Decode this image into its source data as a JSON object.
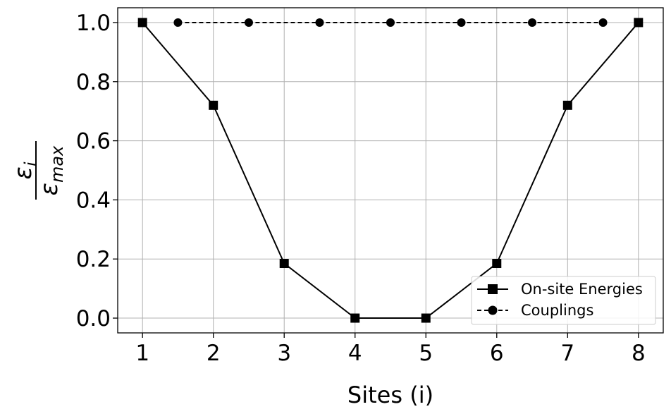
{
  "chart_data": {
    "type": "line",
    "title": "",
    "xlabel": "Sites (i)",
    "ylabel": {
      "numerator_symbol": "ε",
      "numerator_subscript": "i",
      "denominator_symbol": "ε",
      "denominator_subscript": "max"
    },
    "xlim": [
      0.65,
      8.35
    ],
    "ylim": [
      -0.05,
      1.05
    ],
    "xticks": [
      "1",
      "2",
      "3",
      "4",
      "5",
      "6",
      "7",
      "8"
    ],
    "yticks": [
      "0.0",
      "0.2",
      "0.4",
      "0.6",
      "0.8",
      "1.0"
    ],
    "grid": true,
    "legend_position": "lower-right",
    "series": [
      {
        "name": "On-site Energies",
        "marker": "square",
        "linestyle": "solid",
        "color": "#000000",
        "x": [
          1,
          2,
          3,
          4,
          5,
          6,
          7,
          8
        ],
        "y": [
          1.0,
          0.72,
          0.185,
          0.0,
          0.0,
          0.185,
          0.72,
          1.0
        ]
      },
      {
        "name": "Couplings",
        "marker": "circle",
        "linestyle": "dashed",
        "color": "#000000",
        "x": [
          1.5,
          2.5,
          3.5,
          4.5,
          5.5,
          6.5,
          7.5
        ],
        "y": [
          1.0,
          1.0,
          1.0,
          1.0,
          1.0,
          1.0,
          1.0
        ]
      }
    ]
  }
}
